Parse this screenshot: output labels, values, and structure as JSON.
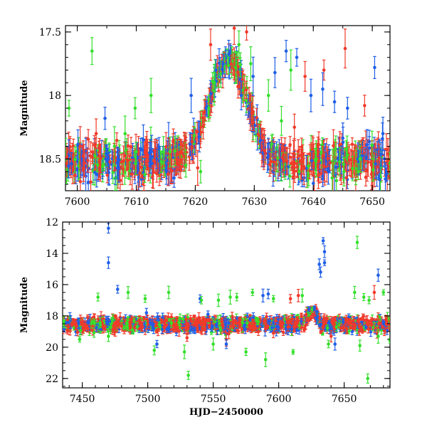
{
  "chart_data": [
    {
      "type": "scatter",
      "panel": "top",
      "xlabel": "",
      "ylabel": "Magnitude",
      "xlim": [
        7598,
        7653
      ],
      "ylim": [
        18.75,
        17.45
      ],
      "y_inverted": true,
      "xticks": [
        7600,
        7610,
        7620,
        7630,
        7640,
        7650
      ],
      "yticks": [
        17.5,
        18,
        18.5
      ],
      "ytick_labels": [
        "17.5",
        "18",
        "18.5"
      ],
      "grid": false,
      "legend": "none",
      "colors": [
        "#f03a2a",
        "#1f5fe8",
        "#34e02c"
      ],
      "baseline_mag": 18.52,
      "peak": {
        "hjd": 7625.8,
        "mag": 17.72,
        "rise_start": 7617,
        "decline_end": 7635
      },
      "series": [
        {
          "color": "#f03a2a",
          "points": [
            [
              7600.5,
              18.4
            ],
            [
              7603.2,
              18.3
            ],
            [
              7609.3,
              18.62
            ],
            [
              7615.4,
              18.62
            ],
            [
              7617.5,
              18.45
            ],
            [
              7620.4,
              18.57
            ],
            [
              7622.6,
              17.6
            ],
            [
              7626.6,
              17.47
            ],
            [
              7628.7,
              17.5
            ],
            [
              7636.8,
              18.25
            ],
            [
              7638.6,
              17.85
            ],
            [
              7641.8,
              17.8
            ],
            [
              7645.4,
              17.63
            ],
            [
              7648.7,
              18.08
            ]
          ]
        },
        {
          "color": "#1f5fe8",
          "points": [
            [
              7604.7,
              18.18
            ],
            [
              7611.2,
              18.35
            ],
            [
              7616.4,
              18.65
            ],
            [
              7619.3,
              18.0
            ],
            [
              7623.5,
              17.8
            ],
            [
              7627.8,
              18.0
            ],
            [
              7629.8,
              17.85
            ],
            [
              7633.5,
              17.82
            ],
            [
              7635.4,
              17.65
            ],
            [
              7637.2,
              17.7
            ],
            [
              7639.6,
              18.0
            ],
            [
              7641.6,
              17.95
            ],
            [
              7643.6,
              18.05
            ],
            [
              7645.8,
              18.1
            ],
            [
              7650.4,
              17.78
            ],
            [
              7651.8,
              18.3
            ]
          ]
        },
        {
          "color": "#34e02c",
          "points": [
            [
              7598.6,
              18.1
            ],
            [
              7602.5,
              17.65
            ],
            [
              7606.3,
              18.4
            ],
            [
              7608.1,
              18.3
            ],
            [
              7609.8,
              18.1
            ],
            [
              7612.5,
              18.0
            ],
            [
              7614.6,
              18.45
            ],
            [
              7618.4,
              18.55
            ],
            [
              7620.9,
              18.6
            ],
            [
              7622.3,
              18.1
            ],
            [
              7623.2,
              17.9
            ],
            [
              7627.4,
              17.6
            ],
            [
              7629.4,
              17.75
            ],
            [
              7632.4,
              18.0
            ],
            [
              7634.6,
              18.2
            ],
            [
              7636.2,
              17.8
            ],
            [
              7637.6,
              18.6
            ],
            [
              7640.5,
              18.5
            ],
            [
              7643.2,
              18.65
            ],
            [
              7645.2,
              18.6
            ],
            [
              7647.6,
              18.6
            ]
          ]
        }
      ]
    },
    {
      "type": "scatter",
      "panel": "bottom",
      "xlabel": "HJD−2450000",
      "ylabel": "Magnitude",
      "xlim": [
        7435,
        7685
      ],
      "ylim": [
        22.6,
        12
      ],
      "y_inverted": true,
      "xticks": [
        7450,
        7500,
        7550,
        7600,
        7650
      ],
      "yticks": [
        12,
        14,
        16,
        18,
        20,
        22
      ],
      "ytick_labels": [
        "12",
        "14",
        "16",
        "18",
        "20",
        "22"
      ],
      "grid": false,
      "legend": "none",
      "colors": [
        "#f03a2a",
        "#1f5fe8",
        "#34e02c"
      ],
      "baseline_mag": 18.55,
      "peak": {
        "hjd": 7626,
        "mag": 17.7
      },
      "series": [
        {
          "color": "#f03a2a",
          "points": [
            [
              7609,
              16.9
            ],
            [
              7615,
              16.7
            ],
            [
              7673,
              16.5
            ],
            [
              7530,
              19.4
            ],
            [
              7560,
              19.5
            ],
            [
              7640,
              19.3
            ]
          ]
        },
        {
          "color": "#1f5fe8",
          "points": [
            [
              7470,
              12.4
            ],
            [
              7470,
              14.6
            ],
            [
              7477,
              16.3
            ],
            [
              7499,
              17.8
            ],
            [
              7540,
              16.9
            ],
            [
              7546,
              17.9
            ],
            [
              7588,
              16.7
            ],
            [
              7592,
              16.6
            ],
            [
              7631,
              14.7
            ],
            [
              7632,
              15.2
            ],
            [
              7634,
              13.2
            ],
            [
              7635,
              13.9
            ],
            [
              7635,
              14.6
            ],
            [
              7676,
              15.4
            ],
            [
              7643,
              19.8
            ],
            [
              7507,
              19.8
            ],
            [
              7560,
              19.8
            ]
          ]
        },
        {
          "color": "#34e02c",
          "points": [
            [
              7462,
              16.8
            ],
            [
              7485,
              16.5
            ],
            [
              7498,
              16.9
            ],
            [
              7516,
              16.5
            ],
            [
              7541,
              17.0
            ],
            [
              7554,
              17.0
            ],
            [
              7563,
              16.8
            ],
            [
              7568,
              16.8
            ],
            [
              7580,
              16.5
            ],
            [
              7596,
              16.9
            ],
            [
              7618,
              16.7
            ],
            [
              7660,
              13.3
            ],
            [
              7658,
              16.5
            ],
            [
              7665,
              16.8
            ],
            [
              7669,
              17.0
            ],
            [
              7680,
              16.5
            ],
            [
              7531,
              21.8
            ],
            [
              7668,
              22.0
            ],
            [
              7685,
              19.6
            ],
            [
              7448,
              19.5
            ],
            [
              7470,
              19.3
            ],
            [
              7505,
              20.2
            ],
            [
              7528,
              20.3
            ],
            [
              7550,
              19.8
            ],
            [
              7575,
              20.3
            ],
            [
              7590,
              20.8
            ],
            [
              7611,
              20.3
            ],
            [
              7638,
              19.8
            ],
            [
              7662,
              19.9
            ],
            [
              7676,
              19.3
            ]
          ]
        }
      ]
    }
  ]
}
